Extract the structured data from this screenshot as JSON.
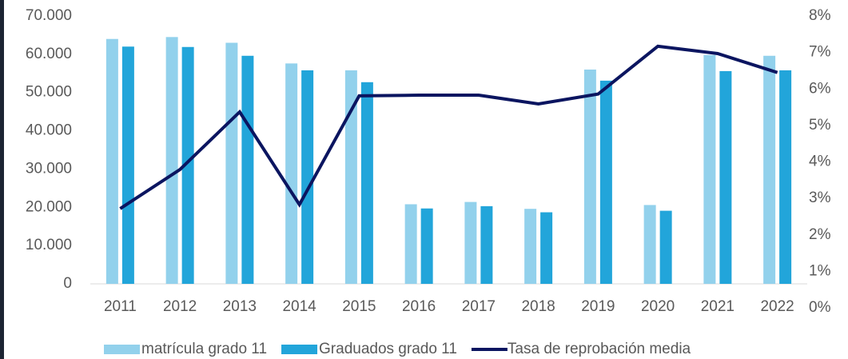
{
  "chart_data": {
    "type": "bar-line",
    "categories": [
      "2011",
      "2012",
      "2013",
      "2014",
      "2015",
      "2016",
      "2017",
      "2018",
      "2019",
      "2020",
      "2021",
      "2022"
    ],
    "series": [
      {
        "name": "matrícula grado 11",
        "color": "#92d1ec",
        "type": "bar",
        "values": [
          64000,
          64500,
          63000,
          57600,
          55800,
          20800,
          21400,
          19600,
          56000,
          20600,
          59800,
          59600
        ]
      },
      {
        "name": "Graduados grado 11",
        "color": "#22a5da",
        "type": "bar",
        "values": [
          62000,
          61900,
          59600,
          55800,
          52700,
          19700,
          20300,
          18700,
          53100,
          19100,
          55600,
          55800
        ]
      },
      {
        "name": "Tasa de reprobación media",
        "color": "#0b1560",
        "type": "line",
        "axis": "y2",
        "values": [
          2.72,
          3.79,
          5.37,
          2.83,
          5.81,
          5.83,
          5.83,
          5.59,
          5.86,
          7.17,
          6.97,
          6.45
        ]
      }
    ],
    "ylim": [
      0,
      70000
    ],
    "yticks": [
      0,
      {
        "value": 10000,
        "label": "10.000"
      },
      {
        "value": 20000,
        "label": "20.000"
      },
      {
        "value": 30000,
        "label": "30.000"
      },
      {
        "value": 40000,
        "label": "40.000"
      },
      {
        "value": 50000,
        "label": "50.000"
      },
      {
        "value": 60000,
        "label": "60.000"
      },
      {
        "value": 70000,
        "label": "70.000"
      }
    ],
    "y2lim": [
      0,
      8
    ],
    "y2ticks": [
      {
        "value": 0,
        "label": "0%"
      },
      {
        "value": 1,
        "label": "1%"
      },
      {
        "value": 2,
        "label": "2%"
      },
      {
        "value": 3,
        "label": "3%"
      },
      {
        "value": 4,
        "label": "4%"
      },
      {
        "value": 5,
        "label": "5%"
      },
      {
        "value": 6,
        "label": "6%"
      },
      {
        "value": 7,
        "label": "7%"
      },
      {
        "value": 8,
        "label": "8%"
      }
    ],
    "legend": "bottom"
  }
}
